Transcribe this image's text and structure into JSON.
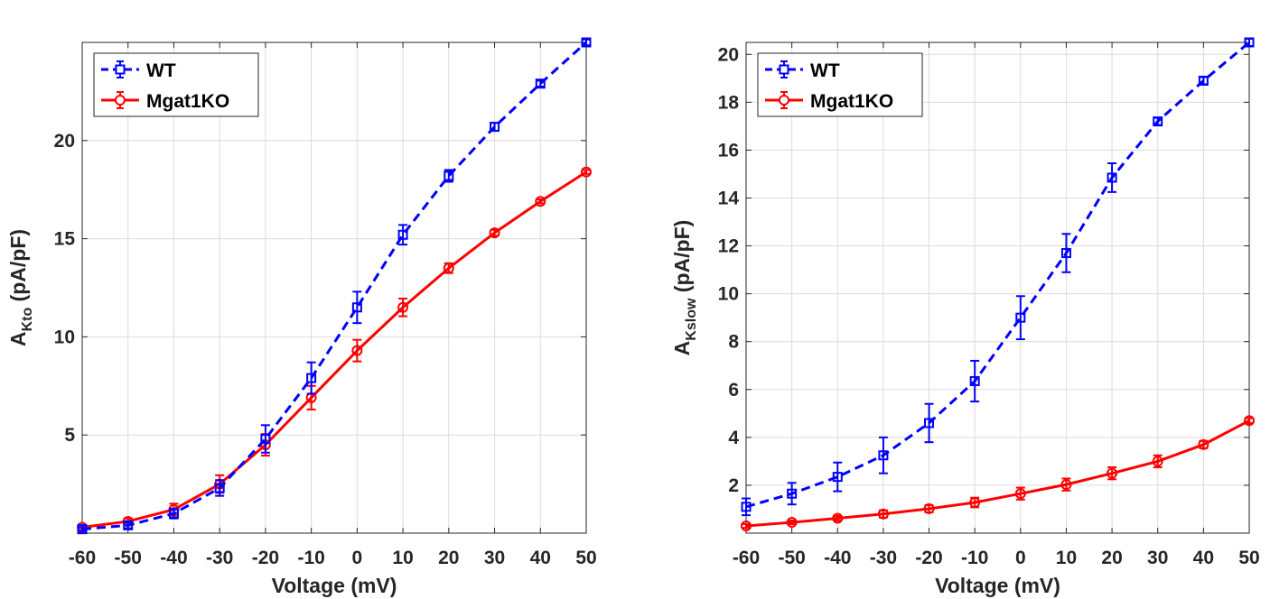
{
  "chart_data": [
    {
      "type": "line",
      "xlabel": "Voltage (mV)",
      "ylabel": {
        "main": "A",
        "sub": "Kto",
        "rest": " (pA/pF)"
      },
      "xlim": [
        -60,
        50
      ],
      "ylim": [
        0,
        25
      ],
      "xticks": [
        -60,
        -50,
        -40,
        -30,
        -20,
        -10,
        0,
        10,
        20,
        30,
        40,
        50
      ],
      "yticks": [
        5,
        10,
        15,
        20
      ],
      "grid": true,
      "legend_position": "top-left",
      "x": [
        -60,
        -50,
        -40,
        -30,
        -20,
        -10,
        0,
        10,
        20,
        30,
        40,
        50
      ],
      "series": [
        {
          "name": "WT",
          "color": "#0000FF",
          "line_style": "dashed",
          "marker": "square",
          "values": [
            0.2,
            0.4,
            1.0,
            2.3,
            4.8,
            7.9,
            11.5,
            15.2,
            18.2,
            20.7,
            22.9,
            25.0
          ],
          "errors": [
            0.1,
            0.15,
            0.25,
            0.4,
            0.7,
            0.8,
            0.8,
            0.5,
            0.3,
            0.2,
            0.15,
            0.15
          ]
        },
        {
          "name": "Mgat1KO",
          "color": "#FF0000",
          "line_style": "solid",
          "marker": "circle",
          "values": [
            0.3,
            0.6,
            1.2,
            2.5,
            4.5,
            6.9,
            9.3,
            11.5,
            13.5,
            15.3,
            16.9,
            18.4
          ],
          "errors": [
            0.1,
            0.15,
            0.3,
            0.45,
            0.55,
            0.6,
            0.55,
            0.45,
            0.25,
            0.15,
            0.1,
            0.1
          ]
        }
      ]
    },
    {
      "type": "line",
      "xlabel": "Voltage (mV)",
      "ylabel": {
        "main": "A",
        "sub": "Kslow",
        "rest": " (pA/pF)"
      },
      "xlim": [
        -60,
        50
      ],
      "ylim": [
        0,
        20.5
      ],
      "xticks": [
        -60,
        -50,
        -40,
        -30,
        -20,
        -10,
        0,
        10,
        20,
        30,
        40,
        50
      ],
      "yticks": [
        2,
        4,
        6,
        8,
        10,
        12,
        14,
        16,
        18,
        20
      ],
      "grid": true,
      "legend_position": "top-left",
      "x": [
        -60,
        -50,
        -40,
        -30,
        -20,
        -10,
        0,
        10,
        20,
        30,
        40,
        50
      ],
      "series": [
        {
          "name": "WT",
          "color": "#0000FF",
          "line_style": "dashed",
          "marker": "square",
          "values": [
            1.1,
            1.65,
            2.35,
            3.25,
            4.6,
            6.35,
            9.0,
            11.7,
            14.85,
            17.2,
            18.9,
            20.5
          ],
          "errors": [
            0.35,
            0.45,
            0.6,
            0.75,
            0.8,
            0.85,
            0.9,
            0.8,
            0.6,
            0.15,
            0.15,
            0.15
          ]
        },
        {
          "name": "Mgat1KO",
          "color": "#FF0000",
          "line_style": "solid",
          "marker": "circle",
          "values": [
            0.3,
            0.45,
            0.62,
            0.8,
            1.02,
            1.28,
            1.65,
            2.03,
            2.5,
            3.0,
            3.7,
            4.7
          ],
          "errors": [
            0.08,
            0.08,
            0.1,
            0.15,
            0.15,
            0.2,
            0.25,
            0.25,
            0.25,
            0.25,
            0.15,
            0.1
          ]
        }
      ]
    }
  ]
}
